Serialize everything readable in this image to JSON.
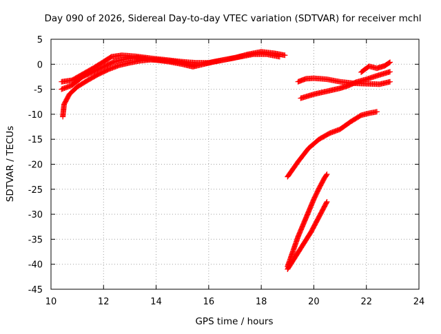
{
  "chart_data": {
    "type": "scatter",
    "title": "Day 090 of 2026, Sidereal Day-to-day VTEC variation (SDTVAR) for receiver mchl",
    "xlabel": "GPS time / hours",
    "ylabel": "SDTVAR / TECUs",
    "xlim": [
      10,
      24
    ],
    "ylim": [
      -45,
      5
    ],
    "xticks": [
      10,
      12,
      14,
      16,
      18,
      20,
      22,
      24
    ],
    "xtick_labels": [
      "10",
      "12",
      "14",
      "16",
      "18",
      "20",
      "22",
      "24"
    ],
    "yticks": [
      -45,
      -40,
      -35,
      -30,
      -25,
      -20,
      -15,
      -10,
      -5,
      0,
      5
    ],
    "ytick_labels": [
      "-45",
      "-40",
      "-35",
      "-30",
      "-25",
      "-20",
      "-15",
      "-10",
      "-5",
      "0",
      "5"
    ],
    "grid": true,
    "marker": "plus",
    "color": "#ff0000",
    "series": [
      {
        "points": [
          [
            10.4,
            -3.5
          ],
          [
            10.8,
            -3.2
          ],
          [
            11.2,
            -2.0
          ],
          [
            11.6,
            -0.8
          ],
          [
            12.0,
            0.5
          ],
          [
            12.3,
            1.5
          ],
          [
            12.7,
            1.8
          ],
          [
            13.2,
            1.6
          ],
          [
            13.8,
            1.2
          ],
          [
            14.5,
            0.8
          ],
          [
            15.0,
            0.5
          ],
          [
            15.5,
            0.3
          ],
          [
            16.0,
            0.3
          ],
          [
            16.5,
            0.8
          ],
          [
            17.0,
            1.3
          ],
          [
            17.5,
            2.0
          ],
          [
            18.0,
            2.5
          ],
          [
            18.5,
            2.2
          ],
          [
            18.9,
            1.8
          ]
        ]
      },
      {
        "points": [
          [
            10.4,
            -5.0
          ],
          [
            10.8,
            -4.2
          ],
          [
            11.2,
            -2.5
          ],
          [
            11.6,
            -1.5
          ],
          [
            12.0,
            -0.5
          ],
          [
            12.4,
            0.5
          ],
          [
            12.8,
            1.0
          ],
          [
            13.3,
            1.3
          ],
          [
            13.8,
            1.0
          ],
          [
            14.5,
            0.5
          ],
          [
            15.0,
            0.0
          ],
          [
            15.4,
            -0.5
          ],
          [
            15.8,
            0.0
          ],
          [
            16.2,
            0.5
          ],
          [
            16.7,
            1.0
          ],
          [
            17.2,
            1.5
          ],
          [
            17.7,
            2.0
          ],
          [
            18.2,
            2.0
          ],
          [
            18.7,
            1.5
          ]
        ]
      },
      {
        "points": [
          [
            10.45,
            -10.5
          ],
          [
            10.5,
            -8.0
          ],
          [
            10.7,
            -6.0
          ],
          [
            11.0,
            -4.5
          ],
          [
            11.4,
            -3.2
          ],
          [
            11.8,
            -2.0
          ],
          [
            12.2,
            -1.0
          ],
          [
            12.6,
            -0.2
          ],
          [
            13.0,
            0.3
          ],
          [
            13.4,
            0.7
          ],
          [
            13.8,
            0.9
          ],
          [
            14.2,
            0.8
          ],
          [
            14.6,
            0.6
          ],
          [
            15.0,
            0.3
          ],
          [
            15.5,
            -0.2
          ]
        ]
      },
      {
        "points": [
          [
            19.4,
            -3.5
          ],
          [
            19.7,
            -2.9
          ],
          [
            20.0,
            -2.8
          ],
          [
            20.5,
            -3.0
          ],
          [
            21.0,
            -3.5
          ],
          [
            21.5,
            -3.8
          ],
          [
            22.0,
            -3.9
          ],
          [
            22.5,
            -4.0
          ],
          [
            22.9,
            -3.5
          ]
        ]
      },
      {
        "points": [
          [
            19.5,
            -6.8
          ],
          [
            20.0,
            -6.0
          ],
          [
            20.5,
            -5.4
          ],
          [
            21.0,
            -4.8
          ],
          [
            21.3,
            -4.3
          ],
          [
            21.6,
            -3.6
          ],
          [
            22.0,
            -3.0
          ],
          [
            22.4,
            -2.3
          ],
          [
            22.9,
            -1.5
          ]
        ]
      },
      {
        "points": [
          [
            21.8,
            -1.6
          ],
          [
            22.1,
            -0.4
          ],
          [
            22.4,
            -0.8
          ],
          [
            22.7,
            -0.3
          ],
          [
            22.9,
            0.4
          ]
        ]
      },
      {
        "points": [
          [
            19.0,
            -22.5
          ],
          [
            19.4,
            -19.5
          ],
          [
            19.8,
            -16.8
          ],
          [
            20.2,
            -15.0
          ],
          [
            20.6,
            -13.8
          ],
          [
            21.0,
            -13.0
          ],
          [
            21.4,
            -11.5
          ],
          [
            21.8,
            -10.2
          ],
          [
            22.1,
            -9.8
          ],
          [
            22.4,
            -9.5
          ]
        ]
      },
      {
        "points": [
          [
            19.0,
            -40.5
          ],
          [
            19.2,
            -37.5
          ],
          [
            19.4,
            -34.5
          ],
          [
            19.6,
            -32.0
          ],
          [
            19.8,
            -29.5
          ],
          [
            20.0,
            -27.0
          ],
          [
            20.2,
            -24.8
          ],
          [
            20.4,
            -22.8
          ],
          [
            20.5,
            -22.0
          ]
        ]
      },
      {
        "points": [
          [
            19.0,
            -41.0
          ],
          [
            19.3,
            -38.5
          ],
          [
            19.6,
            -36.0
          ],
          [
            19.9,
            -33.5
          ],
          [
            20.2,
            -30.5
          ],
          [
            20.5,
            -27.5
          ]
        ]
      }
    ]
  }
}
